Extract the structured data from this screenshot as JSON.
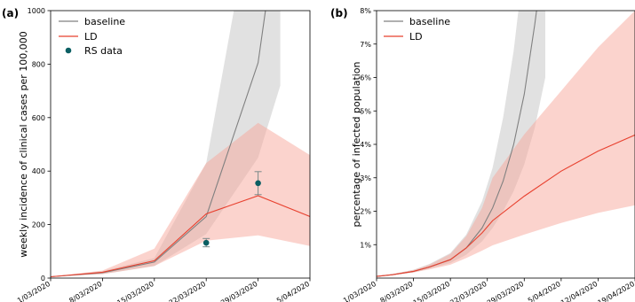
{
  "chart_data": [
    {
      "panel_label": "(a)",
      "type": "line",
      "xlabel": "",
      "ylabel": "weekly incidence of clinical cases per 100,000",
      "ylim": [
        0,
        1000
      ],
      "yticks": [
        0,
        200,
        400,
        600,
        800,
        1000
      ],
      "ytick_labels": [
        "0",
        "200",
        "400",
        "600",
        "800",
        "1000"
      ],
      "xlim": [
        "2020-03-01",
        "2020-04-05"
      ],
      "xticks": [
        "2020-03-01",
        "2020-03-08",
        "2020-03-15",
        "2020-03-22",
        "2020-03-29",
        "2020-04-05"
      ],
      "xtick_labels": [
        "1/03/2020",
        "8/03/2020",
        "15/03/2020",
        "22/03/2020",
        "29/03/2020",
        "5/04/2020"
      ],
      "grid": false,
      "legend_position": "top-left",
      "series": [
        {
          "name": "baseline",
          "color": "#808080",
          "x": [
            "2020-03-01",
            "2020-03-08",
            "2020-03-15",
            "2020-03-22",
            "2020-03-29",
            "2020-03-30",
            "2020-04-01"
          ],
          "y": [
            5,
            20,
            60,
            230,
            805,
            1000,
            1500
          ],
          "band_lower": [
            5,
            15,
            45,
            165,
            450,
            540,
            720
          ],
          "band_upper": [
            5,
            26,
            75,
            430,
            1500,
            1800,
            2400
          ]
        },
        {
          "name": "LD",
          "color": "#e8412f",
          "x": [
            "2020-03-01",
            "2020-03-08",
            "2020-03-15",
            "2020-03-22",
            "2020-03-29",
            "2020-04-05"
          ],
          "y": [
            5,
            22,
            65,
            240,
            308,
            230
          ],
          "band_lower": [
            5,
            15,
            45,
            140,
            160,
            120
          ],
          "band_upper": [
            5,
            28,
            110,
            430,
            580,
            460
          ]
        },
        {
          "name": "RS data",
          "type": "scatter",
          "color": "#0b5f63",
          "x": [
            "2020-03-22",
            "2020-03-29"
          ],
          "y": [
            132,
            355
          ],
          "err_lower": [
            117,
            312
          ],
          "err_upper": [
            148,
            398
          ]
        }
      ]
    },
    {
      "panel_label": "(b)",
      "type": "line",
      "xlabel": "",
      "ylabel": "percentage of infected population",
      "ylim": [
        0,
        8
      ],
      "yticks": [
        1,
        2,
        3,
        4,
        5,
        6,
        7,
        8
      ],
      "ytick_labels": [
        "1%",
        "2%",
        "3%",
        "4%",
        "5%",
        "6%",
        "7%",
        "8%"
      ],
      "xlim": [
        "2020-03-01",
        "2020-04-19"
      ],
      "xticks": [
        "2020-03-01",
        "2020-03-08",
        "2020-03-15",
        "2020-03-22",
        "2020-03-29",
        "2020-04-05",
        "2020-04-12",
        "2020-04-19"
      ],
      "xtick_labels": [
        "1/03/2020",
        "8/03/2020",
        "15/03/2020",
        "22/03/2020",
        "29/03/2020",
        "5/04/2020",
        "12/04/2020",
        "19/04/2020"
      ],
      "grid": false,
      "legend_position": "top-left",
      "series": [
        {
          "name": "baseline",
          "color": "#808080",
          "x": [
            "2020-03-01",
            "2020-03-04",
            "2020-03-08",
            "2020-03-11",
            "2020-03-15",
            "2020-03-18",
            "2020-03-21",
            "2020-03-23",
            "2020-03-25",
            "2020-03-27",
            "2020-03-29",
            "2020-03-31",
            "2020-04-02"
          ],
          "y": [
            0.05,
            0.1,
            0.2,
            0.33,
            0.55,
            0.9,
            1.5,
            2.1,
            2.9,
            4.0,
            5.5,
            7.6,
            10.0
          ],
          "band_lower": [
            0.05,
            0.09,
            0.17,
            0.28,
            0.45,
            0.7,
            1.1,
            1.5,
            2.0,
            2.6,
            3.4,
            4.5,
            6.0
          ],
          "band_upper": [
            0.05,
            0.12,
            0.25,
            0.42,
            0.75,
            1.3,
            2.3,
            3.3,
            4.8,
            6.8,
            9.5,
            12.0,
            15.0
          ]
        },
        {
          "name": "LD",
          "color": "#e8412f",
          "x": [
            "2020-03-01",
            "2020-03-04",
            "2020-03-08",
            "2020-03-11",
            "2020-03-15",
            "2020-03-18",
            "2020-03-21",
            "2020-03-23",
            "2020-03-29",
            "2020-04-05",
            "2020-04-12",
            "2020-04-19"
          ],
          "y": [
            0.05,
            0.1,
            0.2,
            0.33,
            0.55,
            0.9,
            1.35,
            1.72,
            2.45,
            3.2,
            3.8,
            4.28
          ],
          "band_lower": [
            0.05,
            0.09,
            0.17,
            0.26,
            0.4,
            0.6,
            0.82,
            0.98,
            1.3,
            1.65,
            1.95,
            2.18
          ],
          "band_upper": [
            0.05,
            0.12,
            0.24,
            0.4,
            0.72,
            1.25,
            2.1,
            3.0,
            4.3,
            5.6,
            6.9,
            8.0
          ]
        }
      ]
    }
  ]
}
